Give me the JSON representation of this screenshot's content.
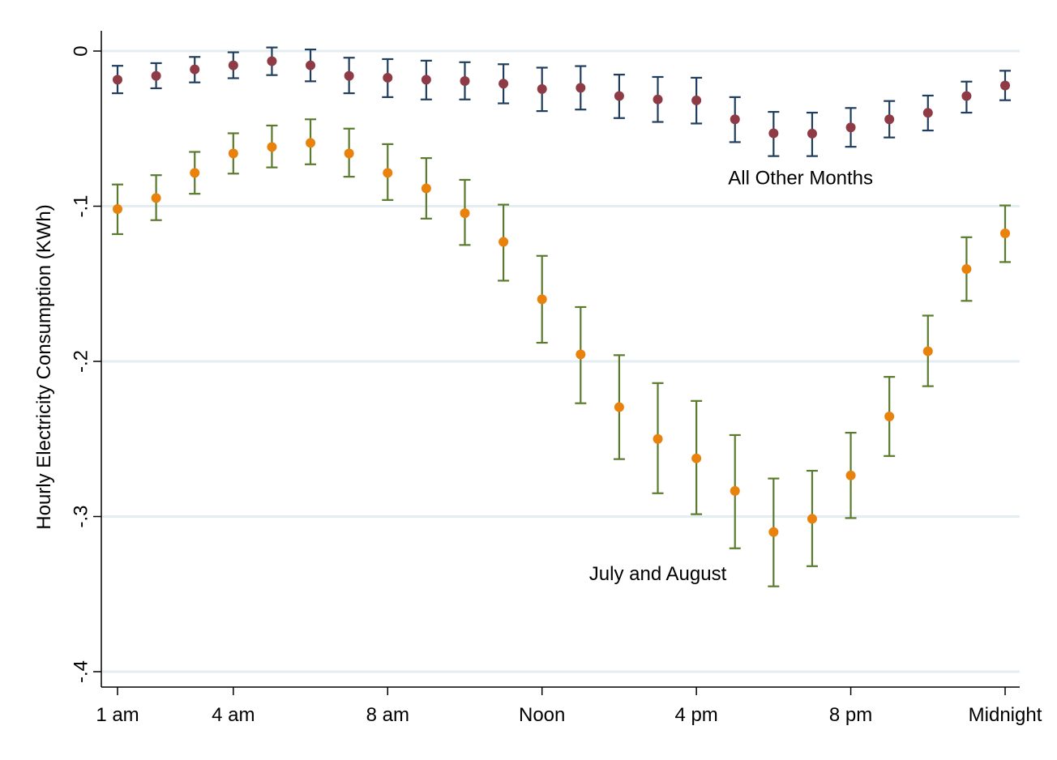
{
  "chart_data": {
    "type": "scatter",
    "title": "",
    "xlabel": "",
    "ylabel": "Hourly Electricity Consumption (KWh)",
    "ylim": [
      -0.4,
      0
    ],
    "xlim": [
      1,
      24
    ],
    "grid": true,
    "legend": "none",
    "x_ticks": [
      {
        "value": 1,
        "label": "1 am"
      },
      {
        "value": 4,
        "label": "4 am"
      },
      {
        "value": 8,
        "label": "8 am"
      },
      {
        "value": 12,
        "label": "Noon"
      },
      {
        "value": 16,
        "label": "4 pm"
      },
      {
        "value": 20,
        "label": "8 pm"
      },
      {
        "value": 24,
        "label": "Midnight"
      }
    ],
    "y_ticks": [
      {
        "value": 0,
        "label": "0"
      },
      {
        "value": -0.1,
        "label": "-.1"
      },
      {
        "value": -0.2,
        "label": "-.2"
      },
      {
        "value": -0.3,
        "label": "-.3"
      },
      {
        "value": -0.4,
        "label": "-.4"
      }
    ],
    "x": [
      1,
      2,
      3,
      4,
      5,
      6,
      7,
      8,
      9,
      10,
      11,
      12,
      13,
      14,
      15,
      16,
      17,
      18,
      19,
      20,
      21,
      22,
      23,
      24
    ],
    "series": [
      {
        "name": "All Other Months",
        "marker_color": "#8e3b46",
        "errorbar_color": "#1f3d5c",
        "y": [
          -0.0185,
          -0.016,
          -0.0118,
          -0.0092,
          -0.0065,
          -0.0092,
          -0.016,
          -0.0172,
          -0.0185,
          -0.0193,
          -0.021,
          -0.0245,
          -0.0237,
          -0.029,
          -0.0312,
          -0.0318,
          -0.044,
          -0.053,
          -0.0532,
          -0.0492,
          -0.044,
          -0.0398,
          -0.029,
          -0.0222
        ],
        "low": [
          -0.0272,
          -0.024,
          -0.0202,
          -0.0175,
          -0.0155,
          -0.0195,
          -0.0272,
          -0.0297,
          -0.0312,
          -0.0312,
          -0.0337,
          -0.0387,
          -0.0377,
          -0.0432,
          -0.0457,
          -0.0467,
          -0.0587,
          -0.0677,
          -0.0677,
          -0.0617,
          -0.0557,
          -0.0512,
          -0.0397,
          -0.0317
        ],
        "high": [
          -0.0095,
          -0.0078,
          -0.0038,
          -0.0008,
          0.0023,
          0.001,
          -0.0043,
          -0.0052,
          -0.0062,
          -0.0072,
          -0.0085,
          -0.0107,
          -0.0097,
          -0.0152,
          -0.0167,
          -0.0172,
          -0.0297,
          -0.0392,
          -0.0397,
          -0.0367,
          -0.0322,
          -0.0287,
          -0.0197,
          -0.0127
        ]
      },
      {
        "name": "July and August",
        "marker_color": "#e8820c",
        "errorbar_color": "#5a7a2e",
        "y": [
          -0.1018,
          -0.0947,
          -0.0785,
          -0.066,
          -0.0618,
          -0.0592,
          -0.066,
          -0.0785,
          -0.0885,
          -0.1045,
          -0.123,
          -0.16,
          -0.1955,
          -0.2295,
          -0.25,
          -0.2625,
          -0.2835,
          -0.31,
          -0.3015,
          -0.2735,
          -0.2355,
          -0.1935,
          -0.1405,
          -0.1175
        ],
        "low": [
          -0.118,
          -0.109,
          -0.092,
          -0.079,
          -0.075,
          -0.073,
          -0.081,
          -0.096,
          -0.108,
          -0.125,
          -0.148,
          -0.188,
          -0.227,
          -0.263,
          -0.285,
          -0.2985,
          -0.3205,
          -0.345,
          -0.332,
          -0.301,
          -0.261,
          -0.216,
          -0.161,
          -0.136
        ],
        "high": [
          -0.086,
          -0.08,
          -0.065,
          -0.053,
          -0.048,
          -0.044,
          -0.05,
          -0.06,
          -0.069,
          -0.083,
          -0.099,
          -0.132,
          -0.165,
          -0.196,
          -0.214,
          -0.2255,
          -0.2475,
          -0.2755,
          -0.2705,
          -0.246,
          -0.21,
          -0.1705,
          -0.12,
          -0.0995
        ]
      }
    ],
    "annotations": [
      {
        "text": "All Other Months",
        "x": 18.7,
        "y": -0.086
      },
      {
        "text": "July and August",
        "x": 15.0,
        "y": -0.341
      }
    ],
    "colors": {
      "frame": "#000000",
      "gridline": "#e4eef1",
      "background": "#ffffff"
    }
  }
}
